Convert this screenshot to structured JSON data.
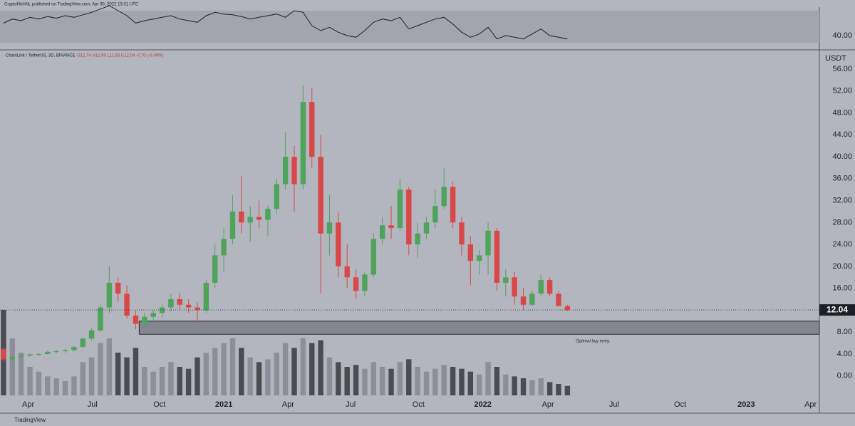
{
  "header": {
    "publisher": "CryptoNichNL published on TradingView.com, Apr 30, 2022 13:31 UTC",
    "brand": "TradingView"
  },
  "chart_data": {
    "type": "candlestick",
    "symbol": "ChainLink / TetherUS, 3D, BINANCE",
    "ohlc_label": "O12.74 H12.99 L11.83 C12.04 -0.70 (-5.49%)",
    "unit": "USDT",
    "annotation": "Optimal buy entry.",
    "zone": [
      7.6,
      10.0
    ],
    "up_color": "#4fa35a",
    "down_color": "#d94848",
    "volume_colors": [
      "#8c8f97",
      "#4a4c52"
    ],
    "categories": [
      null,
      null,
      null,
      null,
      null,
      null,
      null,
      null,
      null,
      null,
      null,
      null,
      null,
      null,
      null,
      null,
      null,
      null,
      null,
      null,
      null,
      null,
      null,
      null,
      null,
      null,
      null,
      null,
      null,
      null,
      null,
      null,
      null,
      null,
      null,
      null,
      null,
      null,
      null,
      null,
      null,
      null,
      null,
      null,
      null,
      null,
      null,
      null,
      null,
      null,
      null,
      null,
      null,
      null,
      null,
      null,
      null,
      null,
      null,
      null,
      null,
      null,
      null,
      null,
      null
    ],
    "open": [
      4.9,
      3.0,
      3.5,
      3.7,
      3.9,
      4.0,
      4.4,
      4.5,
      4.7,
      5.3,
      6.8,
      8.3,
      12.5,
      17.0,
      15.0,
      11.0,
      9.5,
      10.8,
      11.5,
      12.5,
      14.0,
      13.0,
      12.5,
      12.0,
      17.0,
      22.0,
      25.0,
      30.0,
      28.0,
      29.0,
      28.5,
      30.5,
      35.0,
      40.0,
      35.0,
      50.0,
      40.0,
      26.0,
      28.0,
      20.0,
      18.0,
      15.5,
      18.5,
      25.0,
      27.5,
      27.0,
      34.0,
      24.0,
      26.0,
      28.0,
      31.0,
      34.5,
      28.0,
      24.0,
      21.0,
      22.0,
      26.5,
      17.0,
      18.0,
      14.5,
      13.0,
      15.0,
      17.5,
      15.0,
      12.74
    ],
    "high": [
      5.3,
      3.8,
      4.0,
      4.1,
      4.2,
      4.6,
      4.8,
      5.0,
      5.5,
      7.0,
      8.8,
      13.0,
      20.0,
      18.0,
      16.5,
      12.0,
      11.5,
      12.0,
      13.0,
      15.0,
      15.2,
      14.0,
      13.5,
      17.5,
      24.0,
      27.0,
      33.0,
      36.5,
      31.0,
      32.0,
      31.0,
      36.0,
      44.5,
      42.0,
      53.0,
      52.5,
      44.0,
      33.0,
      30.0,
      24.0,
      19.5,
      19.0,
      26.0,
      29.0,
      31.0,
      36.0,
      34.5,
      28.0,
      29.0,
      34.0,
      38.0,
      35.5,
      29.0,
      25.5,
      23.0,
      28.0,
      27.0,
      19.5,
      19.0,
      16.0,
      15.5,
      18.5,
      18.0,
      15.5,
      12.99
    ],
    "low": [
      2.5,
      2.6,
      3.3,
      3.5,
      3.6,
      3.9,
      4.1,
      4.2,
      4.5,
      5.1,
      6.5,
      8.0,
      11.5,
      13.5,
      10.5,
      8.5,
      8.8,
      9.8,
      10.5,
      11.8,
      12.0,
      11.5,
      9.5,
      11.5,
      16.0,
      19.0,
      24.0,
      26.0,
      24.5,
      27.0,
      25.5,
      29.5,
      34.0,
      30.0,
      34.0,
      38.0,
      15.0,
      22.0,
      18.0,
      16.0,
      14.0,
      14.5,
      18.0,
      24.0,
      25.0,
      26.5,
      22.0,
      21.5,
      25.0,
      27.0,
      30.5,
      27.0,
      22.0,
      16.5,
      18.5,
      18.5,
      15.5,
      14.5,
      13.0,
      12.0,
      12.8,
      14.5,
      14.5,
      13.0,
      11.83
    ],
    "close": [
      3.0,
      3.5,
      3.7,
      3.9,
      4.0,
      4.4,
      4.5,
      4.7,
      5.3,
      6.8,
      8.3,
      12.5,
      17.0,
      15.0,
      11.0,
      9.5,
      10.8,
      11.5,
      12.5,
      14.0,
      13.0,
      12.5,
      12.0,
      17.0,
      22.0,
      25.0,
      30.0,
      28.0,
      29.0,
      28.5,
      30.5,
      35.0,
      40.0,
      35.0,
      50.0,
      40.0,
      26.0,
      28.0,
      20.0,
      18.0,
      15.5,
      18.5,
      25.0,
      27.5,
      27.0,
      34.0,
      24.0,
      26.0,
      28.0,
      31.0,
      34.5,
      28.0,
      24.0,
      21.0,
      22.0,
      26.5,
      17.0,
      18.0,
      14.5,
      13.0,
      15.0,
      17.5,
      15.0,
      12.74,
      12.04
    ],
    "volume": [
      90,
      60,
      45,
      30,
      25,
      20,
      18,
      15,
      20,
      35,
      40,
      55,
      60,
      45,
      40,
      50,
      30,
      25,
      30,
      35,
      30,
      28,
      40,
      45,
      50,
      55,
      60,
      50,
      40,
      35,
      38,
      45,
      55,
      50,
      60,
      55,
      58,
      40,
      35,
      30,
      32,
      28,
      35,
      30,
      28,
      35,
      38,
      30,
      25,
      28,
      32,
      30,
      28,
      25,
      22,
      35,
      30,
      22,
      20,
      18,
      16,
      18,
      14,
      12,
      10
    ],
    "ylim": [
      -6.8,
      59.25
    ],
    "yticks": [
      {
        "value": 0,
        "label": "0.00"
      },
      {
        "value": 4,
        "label": "4.00"
      },
      {
        "value": 8,
        "label": "8.00"
      },
      {
        "value": 16,
        "label": "16.00"
      },
      {
        "value": 20,
        "label": "20.00"
      },
      {
        "value": 24,
        "label": "24.00"
      },
      {
        "value": 28,
        "label": "28.00"
      },
      {
        "value": 32,
        "label": "32.00"
      },
      {
        "value": 36,
        "label": "36.00"
      },
      {
        "value": 40,
        "label": "40.00"
      },
      {
        "value": 44,
        "label": "44.00"
      },
      {
        "value": 48,
        "label": "48.00"
      },
      {
        "value": 52,
        "label": "52.00"
      },
      {
        "value": 56,
        "label": "56.00"
      }
    ],
    "xlim": [
      -0.4,
      92.6
    ],
    "xticks": [
      {
        "value": 2.8,
        "label": "Apr"
      },
      {
        "value": 10.1,
        "label": "Jul"
      },
      {
        "value": 17.7,
        "label": "Oct"
      },
      {
        "value": 25.0,
        "label": "2021"
      },
      {
        "value": 32.3,
        "label": "Apr"
      },
      {
        "value": 39.4,
        "label": "Jul"
      },
      {
        "value": 47.1,
        "label": "Oct"
      },
      {
        "value": 54.4,
        "label": "2022"
      },
      {
        "value": 61.8,
        "label": "Apr"
      },
      {
        "value": 69.3,
        "label": "Jul"
      },
      {
        "value": 76.8,
        "label": "Oct"
      },
      {
        "value": 84.3,
        "label": "2023"
      },
      {
        "value": 91.6,
        "label": "Apr"
      }
    ],
    "rsi": {
      "values": [
        55,
        60,
        58,
        62,
        60,
        63,
        61,
        64,
        62,
        65,
        68,
        72,
        76,
        70,
        64,
        55,
        58,
        60,
        62,
        64,
        60,
        58,
        56,
        64,
        68,
        66,
        65,
        63,
        60,
        62,
        64,
        66,
        62,
        70,
        68,
        52,
        46,
        50,
        44,
        40,
        38,
        46,
        56,
        60,
        58,
        62,
        48,
        52,
        56,
        60,
        62,
        54,
        44,
        38,
        42,
        50,
        36,
        40,
        38,
        36,
        42,
        48,
        40,
        38,
        36
      ],
      "ylim": [
        29.7,
        74.3
      ],
      "band": [
        31.4,
        70
      ],
      "yticks": [
        {
          "value": 40,
          "label": "40.00"
        }
      ],
      "color": "#1c1f26"
    }
  }
}
